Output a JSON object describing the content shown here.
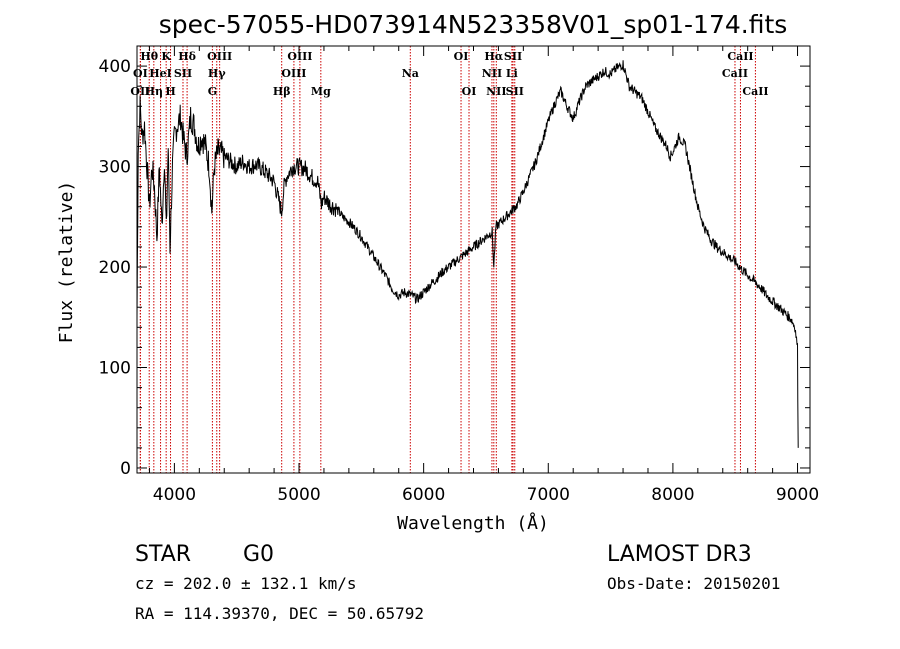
{
  "chart_data": {
    "type": "line",
    "title": "spec-57055-HD073914N523358V01_sp01-174.fits",
    "xlabel": "Wavelength (Å)",
    "ylabel": "Flux (relative)",
    "xlim": [
      3700,
      9100
    ],
    "ylim": [
      -5,
      420
    ],
    "xticks": [
      4000,
      5000,
      6000,
      7000,
      8000,
      9000
    ],
    "yticks": [
      0,
      100,
      200,
      300,
      400
    ],
    "grid": false,
    "line_color": "#000000",
    "marker_color": "#cc0000",
    "series": [
      {
        "values_xy": [
          [
            3700,
            150
          ],
          [
            3710,
            320
          ],
          [
            3725,
            360
          ],
          [
            3740,
            330
          ],
          [
            3760,
            340
          ],
          [
            3780,
            300
          ],
          [
            3800,
            260
          ],
          [
            3820,
            300
          ],
          [
            3840,
            280
          ],
          [
            3860,
            230
          ],
          [
            3880,
            300
          ],
          [
            3900,
            240
          ],
          [
            3920,
            310
          ],
          [
            3935,
            235
          ],
          [
            3950,
            320
          ],
          [
            3965,
            220
          ],
          [
            3985,
            300
          ],
          [
            4000,
            330
          ],
          [
            4020,
            340
          ],
          [
            4050,
            350
          ],
          [
            4070,
            330
          ],
          [
            4100,
            310
          ],
          [
            4130,
            350
          ],
          [
            4160,
            340
          ],
          [
            4190,
            320
          ],
          [
            4220,
            330
          ],
          [
            4250,
            320
          ],
          [
            4280,
            300
          ],
          [
            4300,
            255
          ],
          [
            4320,
            300
          ],
          [
            4350,
            315
          ],
          [
            4400,
            310
          ],
          [
            4450,
            305
          ],
          [
            4500,
            300
          ],
          [
            4550,
            305
          ],
          [
            4600,
            300
          ],
          [
            4650,
            302
          ],
          [
            4700,
            298
          ],
          [
            4750,
            292
          ],
          [
            4800,
            285
          ],
          [
            4830,
            270
          ],
          [
            4860,
            255
          ],
          [
            4880,
            280
          ],
          [
            4900,
            290
          ],
          [
            4950,
            300
          ],
          [
            5000,
            300
          ],
          [
            5050,
            298
          ],
          [
            5100,
            290
          ],
          [
            5150,
            285
          ],
          [
            5180,
            262
          ],
          [
            5200,
            270
          ],
          [
            5250,
            262
          ],
          [
            5300,
            258
          ],
          [
            5350,
            250
          ],
          [
            5400,
            245
          ],
          [
            5450,
            238
          ],
          [
            5500,
            230
          ],
          [
            5550,
            220
          ],
          [
            5600,
            210
          ],
          [
            5650,
            200
          ],
          [
            5700,
            190
          ],
          [
            5750,
            178
          ],
          [
            5800,
            172
          ],
          [
            5850,
            175
          ],
          [
            5900,
            172
          ],
          [
            5950,
            168
          ],
          [
            6000,
            175
          ],
          [
            6050,
            182
          ],
          [
            6100,
            188
          ],
          [
            6150,
            195
          ],
          [
            6200,
            200
          ],
          [
            6250,
            205
          ],
          [
            6300,
            210
          ],
          [
            6350,
            215
          ],
          [
            6400,
            220
          ],
          [
            6450,
            225
          ],
          [
            6500,
            230
          ],
          [
            6550,
            235
          ],
          [
            6563,
            200
          ],
          [
            6580,
            240
          ],
          [
            6620,
            245
          ],
          [
            6660,
            250
          ],
          [
            6700,
            255
          ],
          [
            6750,
            262
          ],
          [
            6800,
            275
          ],
          [
            6850,
            290
          ],
          [
            6900,
            305
          ],
          [
            6950,
            325
          ],
          [
            7000,
            345
          ],
          [
            7050,
            362
          ],
          [
            7100,
            375
          ],
          [
            7150,
            360
          ],
          [
            7200,
            348
          ],
          [
            7250,
            365
          ],
          [
            7300,
            380
          ],
          [
            7350,
            385
          ],
          [
            7400,
            390
          ],
          [
            7450,
            395
          ],
          [
            7500,
            392
          ],
          [
            7550,
            398
          ],
          [
            7600,
            402
          ],
          [
            7650,
            380
          ],
          [
            7700,
            374
          ],
          [
            7750,
            368
          ],
          [
            7800,
            355
          ],
          [
            7850,
            340
          ],
          [
            7900,
            330
          ],
          [
            7950,
            320
          ],
          [
            7980,
            310
          ],
          [
            8000,
            315
          ],
          [
            8050,
            330
          ],
          [
            8100,
            320
          ],
          [
            8150,
            290
          ],
          [
            8200,
            260
          ],
          [
            8250,
            240
          ],
          [
            8300,
            228
          ],
          [
            8350,
            220
          ],
          [
            8400,
            215
          ],
          [
            8450,
            210
          ],
          [
            8500,
            205
          ],
          [
            8550,
            198
          ],
          [
            8600,
            192
          ],
          [
            8650,
            186
          ],
          [
            8700,
            180
          ],
          [
            8750,
            172
          ],
          [
            8800,
            166
          ],
          [
            8850,
            160
          ],
          [
            8900,
            154
          ],
          [
            8950,
            148
          ],
          [
            8980,
            140
          ],
          [
            9000,
            120
          ],
          [
            9005,
            20
          ]
        ]
      }
    ],
    "spectral_lines": [
      {
        "label": "Hθ",
        "x": 3798,
        "row": 1
      },
      {
        "label": "K",
        "x": 3934,
        "row": 1
      },
      {
        "label": "Hδ",
        "x": 4102,
        "row": 1
      },
      {
        "label": "OIII",
        "x": 4363,
        "row": 1
      },
      {
        "label": "OIII",
        "x": 5007,
        "row": 1
      },
      {
        "label": "OI",
        "x": 6300,
        "row": 1
      },
      {
        "label": "Hα",
        "x": 6563,
        "row": 1
      },
      {
        "label": "SII",
        "x": 6717,
        "row": 1
      },
      {
        "label": "CaII",
        "x": 8542,
        "row": 1
      },
      {
        "label": "OI",
        "x": 3727,
        "row": 2
      },
      {
        "label": "HeI",
        "x": 3889,
        "row": 2
      },
      {
        "label": "SII",
        "x": 4069,
        "row": 2
      },
      {
        "label": "Hγ",
        "x": 4340,
        "row": 2
      },
      {
        "label": "OIII",
        "x": 4959,
        "row": 2
      },
      {
        "label": "Na",
        "x": 5893,
        "row": 2
      },
      {
        "label": "NII",
        "x": 6548,
        "row": 2
      },
      {
        "label": "Li",
        "x": 6708,
        "row": 2
      },
      {
        "label": "CaII",
        "x": 8498,
        "row": 2
      },
      {
        "label": "OII",
        "x": 3727,
        "row": 3
      },
      {
        "label": "Hη",
        "x": 3835,
        "row": 3
      },
      {
        "label": "H",
        "x": 3969,
        "row": 3
      },
      {
        "label": "G",
        "x": 4305,
        "row": 3
      },
      {
        "label": "Hβ",
        "x": 4861,
        "row": 3
      },
      {
        "label": "Mg",
        "x": 5175,
        "row": 3
      },
      {
        "label": "OI",
        "x": 6364,
        "row": 3
      },
      {
        "label": "NII",
        "x": 6583,
        "row": 3
      },
      {
        "label": "SII",
        "x": 6731,
        "row": 3
      },
      {
        "label": "CaII",
        "x": 8662,
        "row": 3
      }
    ]
  },
  "info": {
    "class": "STAR",
    "subclass": "G0",
    "survey": "LAMOST DR3",
    "cz": "cz = 202.0 ± 132.1 km/s",
    "obs_date": "Obs-Date: 20150201",
    "radec": "RA = 114.39370, DEC =  50.65792"
  }
}
